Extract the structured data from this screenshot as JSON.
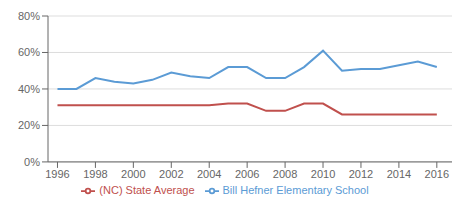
{
  "chart_data": {
    "type": "line",
    "x": [
      1996,
      1997,
      1998,
      1999,
      2000,
      2001,
      2002,
      2003,
      2004,
      2005,
      2006,
      2007,
      2008,
      2009,
      2010,
      2011,
      2012,
      2013,
      2014,
      2015,
      2016
    ],
    "series": [
      {
        "name": "Bill Hefner Elementary School",
        "color": "#5b9bd5",
        "values": [
          40,
          40,
          46,
          44,
          43,
          45,
          49,
          47,
          46,
          52,
          52,
          46,
          46,
          52,
          61,
          50,
          51,
          51,
          53,
          55,
          52
        ]
      },
      {
        "name": "(NC) State Average",
        "color": "#c0504d",
        "values": [
          31,
          31,
          31,
          31,
          31,
          31,
          31,
          31,
          31,
          32,
          32,
          28,
          28,
          32,
          32,
          26,
          26,
          26,
          26,
          26,
          26
        ]
      }
    ],
    "xlim": [
      1995.5,
      2016.8
    ],
    "xticks": [
      1996,
      1998,
      2000,
      2002,
      2004,
      2006,
      2008,
      2010,
      2012,
      2014,
      2016
    ],
    "ylim": [
      0,
      80
    ],
    "yticks": [
      {
        "value": 0,
        "label": "0%"
      },
      {
        "value": 20,
        "label": "20%"
      },
      {
        "value": 40,
        "label": "40%"
      },
      {
        "value": 60,
        "label": "60%"
      },
      {
        "value": 80,
        "label": "80%"
      }
    ],
    "grid": "y",
    "legend": "bottom"
  }
}
